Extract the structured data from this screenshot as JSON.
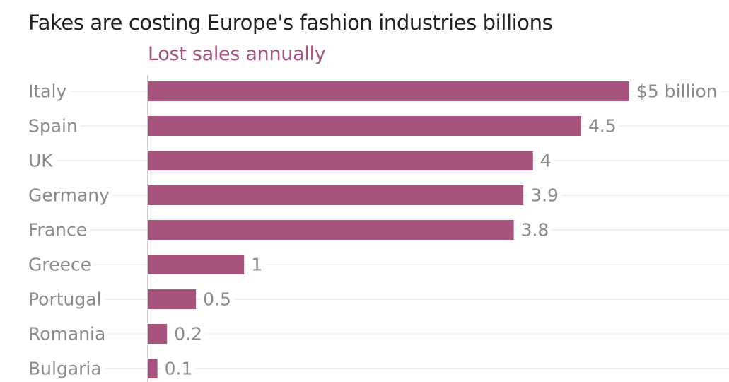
{
  "chart_data": {
    "type": "bar",
    "orientation": "horizontal",
    "title": "Fakes are costing Europe's fashion industries billions",
    "subtitle": "Lost sales annually",
    "categories": [
      "Italy",
      "Spain",
      "UK",
      "Germany",
      "France",
      "Greece",
      "Portugal",
      "Romania",
      "Bulgaria"
    ],
    "values": [
      5,
      4.5,
      4,
      3.9,
      3.8,
      1,
      0.5,
      0.2,
      0.1
    ],
    "value_labels": [
      "$5 billion",
      "4.5",
      "4",
      "3.9",
      "3.8",
      "1",
      "0.5",
      "0.2",
      "0.1"
    ],
    "unit": "billion USD",
    "xlim": [
      0,
      5
    ],
    "grid": true,
    "legend": "none",
    "bar_color": "#a8527f",
    "label_color": "#8a8a8a",
    "grid_color": "#e6e6e6"
  }
}
